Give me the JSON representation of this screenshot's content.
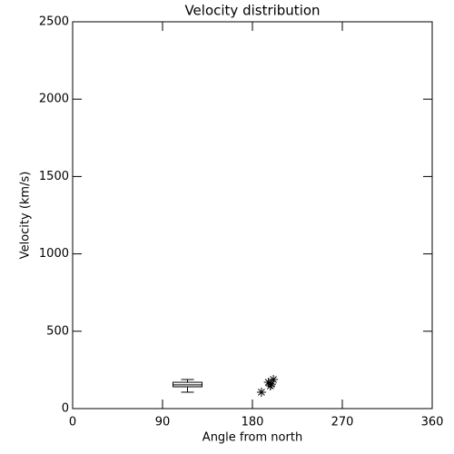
{
  "chart_data": [
    {
      "type": "box",
      "title": "Velocity distribution",
      "x_label": "Angle from north",
      "y_label": "Velocity (km/s)",
      "xlim": [
        0,
        360
      ],
      "xticks": [
        0,
        90,
        180,
        270,
        360
      ],
      "ylim": [
        0,
        2500
      ],
      "yticks": [
        0,
        500,
        1000,
        1500,
        2000,
        2500
      ],
      "x": 115,
      "min": 106,
      "q1": 141,
      "median": 153,
      "q3": 170,
      "max": 188
    },
    {
      "type": "scatter",
      "x": [
        189,
        196,
        198,
        199,
        201
      ],
      "y": [
        106,
        170,
        147,
        158,
        188
      ]
    }
  ]
}
